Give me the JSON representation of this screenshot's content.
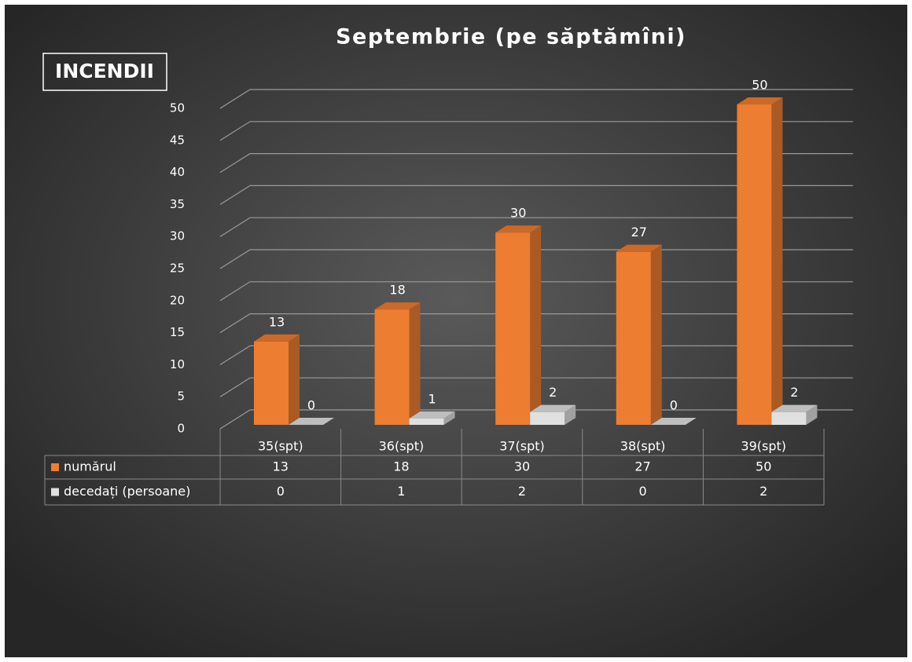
{
  "chart_data": {
    "type": "bar3d",
    "title": "Septembrie (pe săptămîni)",
    "label": "INCENDII",
    "categories": [
      "35(spt)",
      "36(spt)",
      "37(spt)",
      "38(spt)",
      "39(spt)"
    ],
    "series": [
      {
        "name": "numărul",
        "color": "#ED7D31",
        "values": [
          13,
          18,
          30,
          27,
          50
        ]
      },
      {
        "name": "decedați (persoane)",
        "color": "#E0E0E0",
        "values": [
          0,
          1,
          2,
          0,
          2
        ]
      }
    ],
    "ylim": [
      0,
      50
    ],
    "yticks": [
      0,
      5,
      10,
      15,
      20,
      25,
      30,
      35,
      40,
      45,
      50
    ],
    "grid": true,
    "data_table": true
  }
}
